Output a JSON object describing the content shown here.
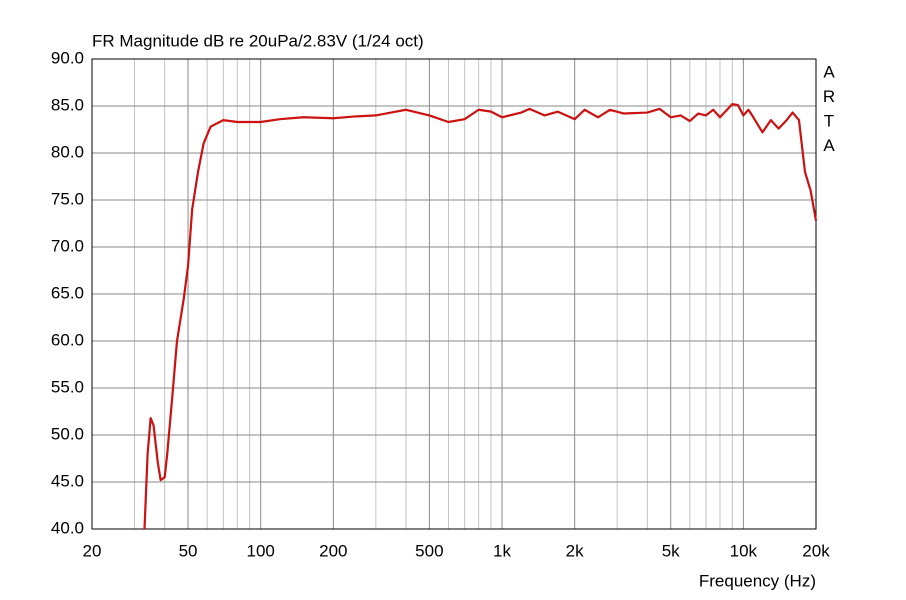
{
  "chart_data": {
    "type": "line",
    "title": "FR Magnitude dB re 20uPa/2.83V (1/24 oct)",
    "annotation": "ARTA",
    "x_label": "Frequency (Hz)",
    "x_scale": "log",
    "grid": true,
    "xlim": [
      20,
      20000
    ],
    "ylim": [
      40,
      90
    ],
    "xticks": [
      20,
      50,
      100,
      200,
      500,
      {
        "value": 1000,
        "label": "1k"
      },
      {
        "value": 2000,
        "label": "2k"
      },
      {
        "value": 5000,
        "label": "5k"
      },
      {
        "value": 10000,
        "label": "10k"
      },
      {
        "value": 20000,
        "label": "20k"
      }
    ],
    "x_minor_grid": [
      30,
      40,
      60,
      70,
      80,
      90,
      300,
      400,
      600,
      700,
      800,
      900,
      3000,
      4000,
      6000,
      7000,
      8000,
      9000
    ],
    "yticks": [
      {
        "value": 40,
        "label": "40.0"
      },
      {
        "value": 45,
        "label": "45.0"
      },
      {
        "value": 50,
        "label": "50.0"
      },
      {
        "value": 55,
        "label": "55.0"
      },
      {
        "value": 60,
        "label": "60.0"
      },
      {
        "value": 65,
        "label": "65.0"
      },
      {
        "value": 70,
        "label": "70.0"
      },
      {
        "value": 75,
        "label": "75.0"
      },
      {
        "value": 80,
        "label": "80.0"
      },
      {
        "value": 85,
        "label": "85.0"
      },
      {
        "value": 90,
        "label": "90.0"
      }
    ],
    "series": [
      {
        "name": "FR Magnitude",
        "color": "#cc1111",
        "x": [
          33,
          34,
          35,
          36,
          37.5,
          38.5,
          40,
          41,
          43,
          45,
          48,
          50,
          52,
          55,
          58,
          62,
          70,
          80,
          100,
          120,
          150,
          200,
          250,
          300,
          400,
          500,
          600,
          700,
          800,
          900,
          1000,
          1200,
          1300,
          1500,
          1700,
          2000,
          2200,
          2500,
          2800,
          3200,
          4000,
          4500,
          5000,
          5500,
          6000,
          6500,
          7000,
          7500,
          8000,
          9000,
          9500,
          10000,
          10500,
          11000,
          12000,
          13000,
          14000,
          15000,
          16000,
          17000,
          18000,
          19000,
          20000
        ],
        "values": [
          40,
          48,
          51.8,
          51,
          47,
          45.2,
          45.5,
          48,
          54,
          60,
          64.5,
          68,
          74,
          78,
          81,
          82.8,
          83.5,
          83.3,
          83.3,
          83.6,
          83.8,
          83.7,
          83.9,
          84,
          84.6,
          84,
          83.3,
          83.6,
          84.6,
          84.4,
          83.8,
          84.3,
          84.7,
          84,
          84.4,
          83.6,
          84.6,
          83.8,
          84.6,
          84.2,
          84.3,
          84.7,
          83.8,
          84,
          83.4,
          84.2,
          84,
          84.6,
          83.8,
          85.2,
          85.1,
          84,
          84.6,
          83.8,
          82.2,
          83.5,
          82.6,
          83.4,
          84.3,
          83.5,
          78,
          76,
          72.8
        ]
      }
    ]
  }
}
